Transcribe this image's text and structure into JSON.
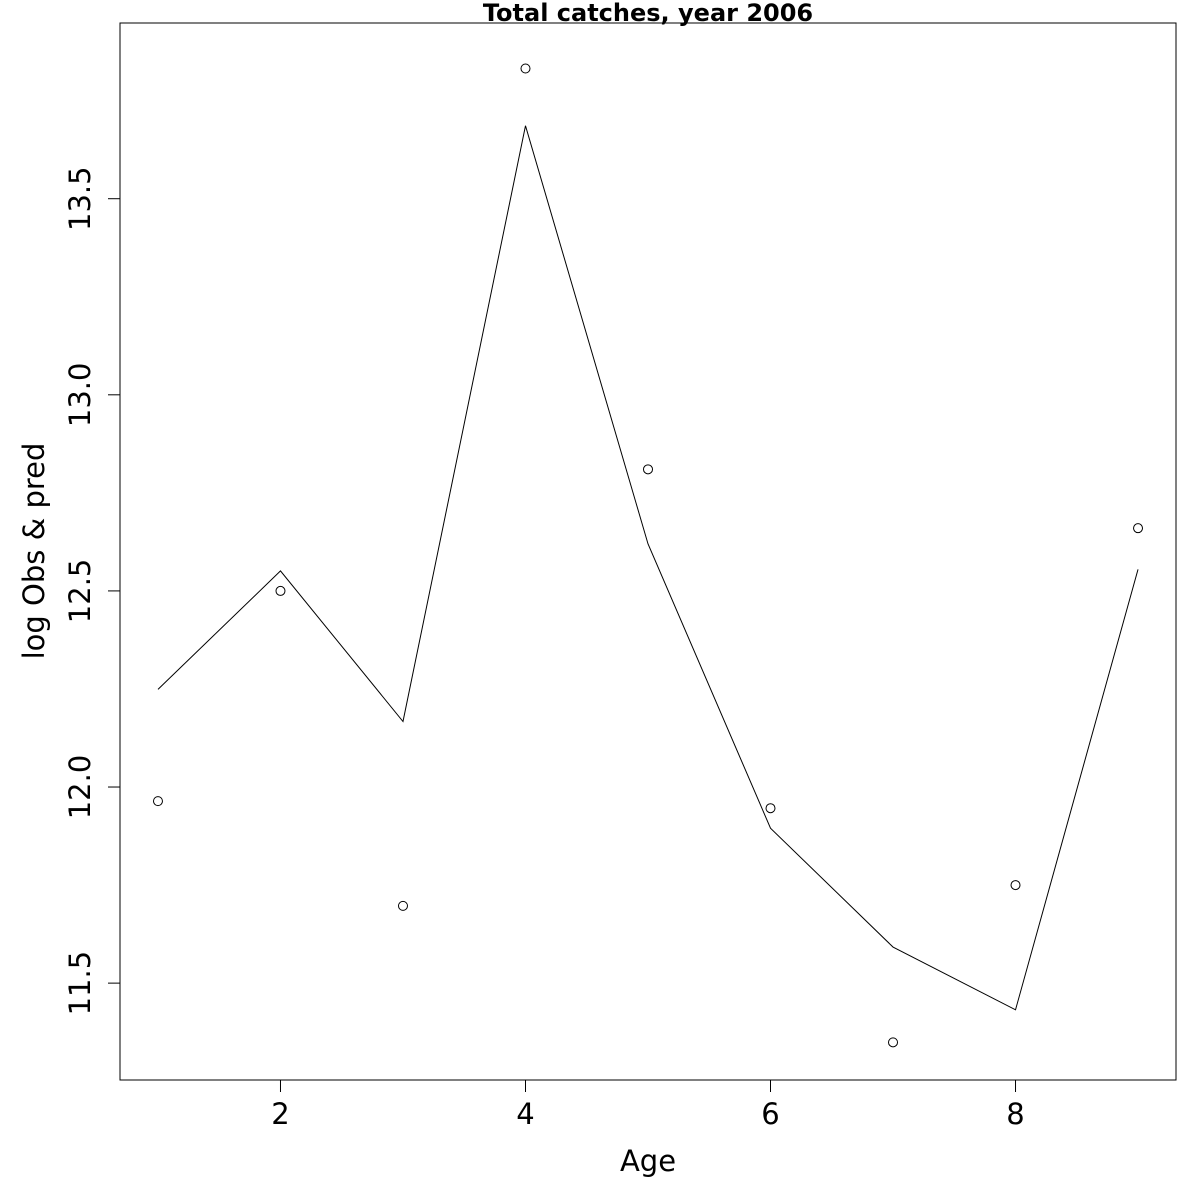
{
  "chart_data": {
    "type": "scatter",
    "title": "Total catches, year 2006",
    "xlabel": "Age",
    "ylabel": "log Obs & pred",
    "xlim": [
      0.69,
      9.31
    ],
    "ylim": [
      11.253,
      13.948
    ],
    "x_ticks": [
      2,
      4,
      6,
      8
    ],
    "y_ticks": [
      11.5,
      12.0,
      12.5,
      13.0,
      13.5
    ],
    "x_tick_labels": [
      "2",
      "4",
      "6",
      "8"
    ],
    "y_tick_labels": [
      "11.5",
      "12.0",
      "12.5",
      "13.0",
      "13.5"
    ],
    "grid": false,
    "series": [
      {
        "kind": "points",
        "marker": "open-circle",
        "x": [
          1,
          2,
          3,
          4,
          5,
          6,
          7,
          8,
          9
        ],
        "y": [
          11.964,
          12.5,
          11.697,
          13.832,
          12.81,
          11.946,
          11.349,
          11.75,
          12.66
        ]
      },
      {
        "kind": "line",
        "x": [
          1,
          2,
          3,
          4,
          5,
          6,
          7,
          8,
          9
        ],
        "y": [
          12.249,
          12.551,
          12.167,
          13.686,
          12.62,
          11.895,
          11.592,
          11.432,
          12.555
        ]
      }
    ]
  }
}
